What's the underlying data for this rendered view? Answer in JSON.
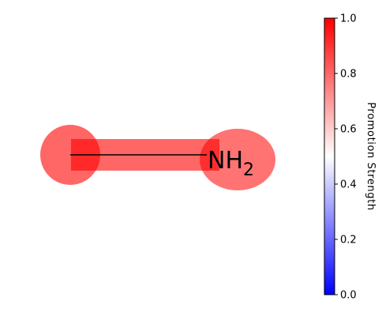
{
  "molecule": {
    "atoms": [
      {
        "id": "c1",
        "element": "C",
        "label": "",
        "promotion": 0.8
      },
      {
        "id": "n1",
        "element": "N",
        "label": "NH",
        "subscript": "2",
        "promotion": 0.75
      }
    ],
    "bonds": [
      {
        "from": "c1",
        "to": "n1",
        "order": 1,
        "promotion": 0.85
      }
    ]
  },
  "colorbar": {
    "label": "Promotion Strength",
    "min": 0.0,
    "max": 1.0,
    "ticks": [
      "0.0",
      "0.2",
      "0.4",
      "0.6",
      "0.8",
      "1.0"
    ],
    "colormap": "bwr",
    "colors": {
      "low": "#0000ff",
      "mid": "#ffffff",
      "high": "#ff0000"
    }
  },
  "style": {
    "highlight_color": "#ff0000",
    "bond_color": "#000000"
  }
}
